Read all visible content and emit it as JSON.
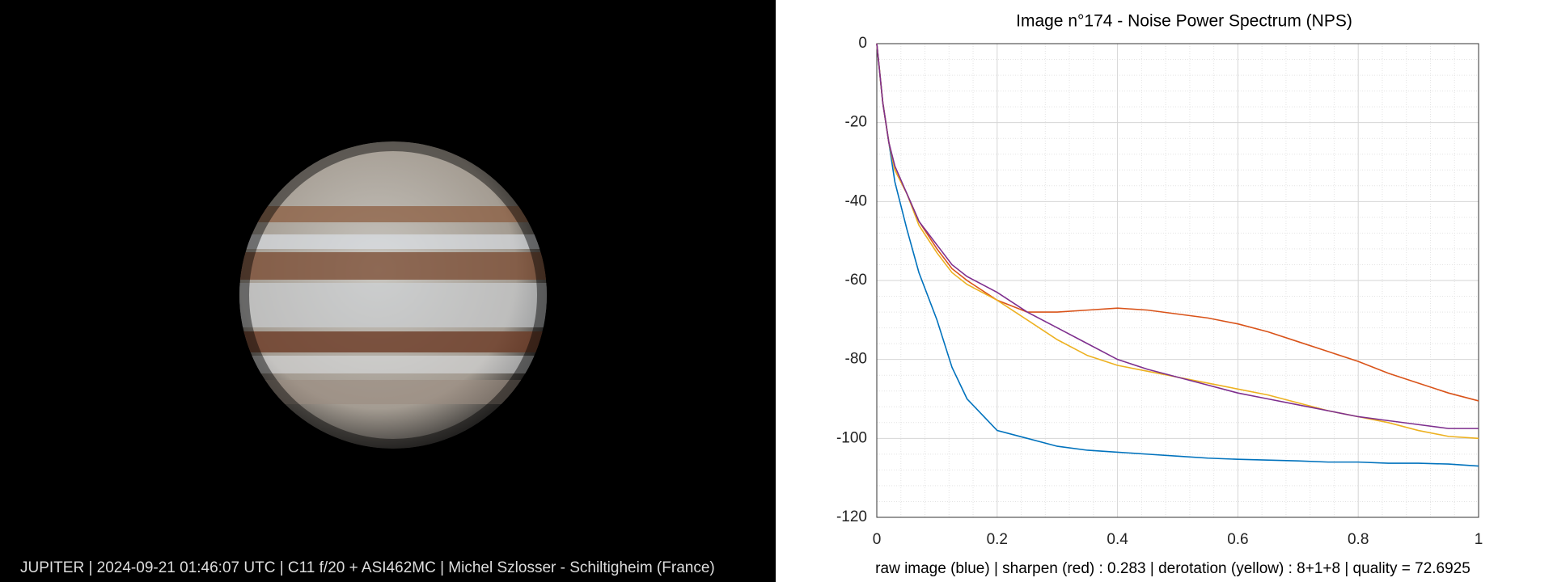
{
  "image_caption": "JUPITER | 2024-09-21  01:46:07 UTC | C11 f/20 + ASI462MC | Michel Szlosser - Schiltigheim (France)",
  "chart_data": {
    "type": "line",
    "title": "Image n°174 - Noise Power Spectrum (NPS)",
    "caption": "raw image (blue) | sharpen (red) : 0.283 | derotation (yellow) : 8+1+8 |  quality = 72.6925",
    "x": [
      0,
      0.01,
      0.02,
      0.03,
      0.05,
      0.07,
      0.1,
      0.125,
      0.15,
      0.2,
      0.25,
      0.3,
      0.35,
      0.4,
      0.45,
      0.5,
      0.55,
      0.6,
      0.65,
      0.7,
      0.75,
      0.8,
      0.85,
      0.9,
      0.95,
      1
    ],
    "series": [
      {
        "color": "#0072bd",
        "values": [
          0,
          -15,
          -25,
          -35,
          -47,
          -58,
          -70,
          -82,
          -90,
          -98,
          -100,
          -102,
          -103,
          -103.5,
          -104,
          -104.5,
          -105,
          -105.3,
          -105.5,
          -105.7,
          -106,
          -106,
          -106.3,
          -106.3,
          -106.5,
          -107
        ]
      },
      {
        "color": "#d95319",
        "values": [
          0,
          -15,
          -25,
          -32,
          -38,
          -45,
          -52,
          -57,
          -60,
          -65,
          -68,
          -68,
          -67.5,
          -67,
          -67.5,
          -68.5,
          -69.5,
          -71,
          -73,
          -75.5,
          -78,
          -80.5,
          -83.5,
          -86,
          -88.5,
          -90.5
        ]
      },
      {
        "color": "#edb120",
        "values": [
          0,
          -15,
          -25,
          -32,
          -38,
          -46,
          -53,
          -58,
          -61,
          -65,
          -70,
          -75,
          -79,
          -81.5,
          -83,
          -84.5,
          -86,
          -87.5,
          -89,
          -91,
          -93,
          -94.5,
          -96,
          -98,
          -99.5,
          -100
        ]
      },
      {
        "color": "#7e2f8e",
        "values": [
          0,
          -15,
          -25,
          -31,
          -38,
          -45,
          -51,
          -56,
          -59,
          -63,
          -68,
          -72,
          -76,
          -80,
          -82.5,
          -84.5,
          -86.5,
          -88.5,
          -90,
          -91.5,
          -93,
          -94.5,
          -95.5,
          -96.5,
          -97.5,
          -97.5
        ]
      }
    ],
    "xlim": [
      0,
      1
    ],
    "ylim": [
      -120,
      0
    ],
    "xticks": [
      0,
      0.2,
      0.4,
      0.6,
      0.8,
      1
    ],
    "yticks": [
      -120,
      -100,
      -80,
      -60,
      -40,
      -20,
      0
    ],
    "grid": true,
    "minor_grid": true
  }
}
